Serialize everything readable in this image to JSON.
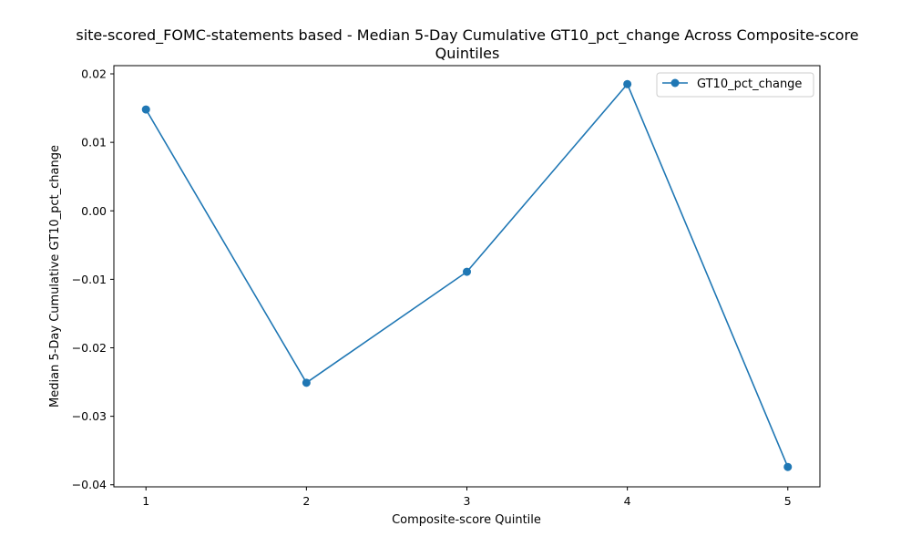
{
  "chart_data": {
    "type": "line",
    "title_line1": "site-scored_FOMC-statements based - Median 5-Day Cumulative GT10_pct_change Across Composite-score",
    "title_line2": "Quintiles",
    "xlabel": "Composite-score Quintile",
    "ylabel": "Median 5-Day Cumulative GT10_pct_change",
    "x": [
      1,
      2,
      3,
      4,
      5
    ],
    "x_tick_labels": [
      "1",
      "2",
      "3",
      "4",
      "5"
    ],
    "y_ticks": [
      0.02,
      0.01,
      0.0,
      -0.01,
      -0.02,
      -0.03,
      -0.04
    ],
    "y_tick_labels": [
      "0.02",
      "0.01",
      "0.00",
      "−0.01",
      "−0.02",
      "−0.03",
      "−0.04"
    ],
    "ylim": [
      -0.0403,
      0.0212
    ],
    "xlim": [
      0.8,
      5.2
    ],
    "grid": false,
    "legend_position": "top-right",
    "series": [
      {
        "name": "GT10_pct_change",
        "color": "#1f77b4",
        "marker": "circle",
        "values": [
          0.0148,
          -0.0251,
          -0.0089,
          0.0185,
          -0.0374
        ]
      }
    ]
  }
}
